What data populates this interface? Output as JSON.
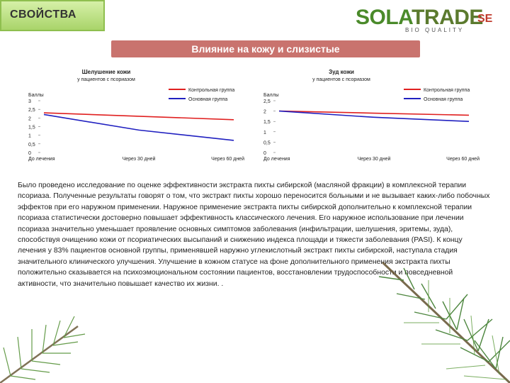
{
  "header": {
    "section_title": "СВОЙСТВА"
  },
  "logo": {
    "part1": "SOLA",
    "part2": "TRADE",
    "suffix": "SE",
    "tagline": "BIO QUALITY"
  },
  "banner": {
    "title": "Влияние на кожу и слизистые"
  },
  "colors": {
    "control": "#e02020",
    "main": "#2020c0",
    "banner": "#c9736e",
    "tab": "#a9d46a"
  },
  "chart_data": [
    {
      "type": "line",
      "title": "Шелушение кожи",
      "subtitle": "у пациентов с псориазом",
      "ylabel": "Баллы",
      "categories": [
        "До лечения",
        "Через 30 дней",
        "Через 60 дней"
      ],
      "yticks": [
        "3",
        "2,5",
        "2",
        "1,5",
        "1",
        "0,5",
        "0"
      ],
      "ylim": [
        0,
        3
      ],
      "series": [
        {
          "name": "Контрольная группа",
          "values": [
            2.3,
            2.1,
            1.9
          ]
        },
        {
          "name": "Основная группа",
          "values": [
            2.2,
            1.3,
            0.7
          ]
        }
      ]
    },
    {
      "type": "line",
      "title": "Зуд кожи",
      "subtitle": "у пациентов с псориазом",
      "ylabel": "Баллы",
      "categories": [
        "До лечения",
        "Через 30 дней",
        "Через 60 дней"
      ],
      "yticks": [
        "2,5",
        "2",
        "1,5",
        "1",
        "0,5",
        "0"
      ],
      "ylim": [
        0,
        2.5
      ],
      "series": [
        {
          "name": "Контрольная группа",
          "values": [
            2.0,
            1.9,
            1.8
          ]
        },
        {
          "name": "Основная группа",
          "values": [
            2.0,
            1.7,
            1.5
          ]
        }
      ]
    }
  ],
  "body_text": "Было проведено исследование по оценке эффективности экстракта пихты сибирской (масляной фракции) в комплексной терапии псориаза. Полученные результаты говорят о том, что экстракт пихты хорошо переносится больными и не вызывает каких-либо побочных эффектов при его наружном применении. Наружное применение экстракта пихты сибирской дополнительно к комплексной терапии псориаза статистически достоверно повышает эффективность классического лечения. Его наружное использование при лечении псориаза значительно уменьшает проявление основных симптомов заболевания (инфильтрации, шелушения, эритемы, зуда), способствуя очищению кожи от псориатических высыпаний и снижению индекса площади и тяжести заболевания (PASI). К концу лечения у 83% пациентов основной группы, применявшей наружно углекислотный экстракт пихты сибирской, наступала стадия значительного клинического улучшения. Улучшение в кожном статусе на фоне дополнительного применения экстракта пихты положительно сказывается на психоэмоциональном состоянии пациентов, восстановлении трудоспособности и повседневной активности, что значительно повышает качество их жизни. ."
}
